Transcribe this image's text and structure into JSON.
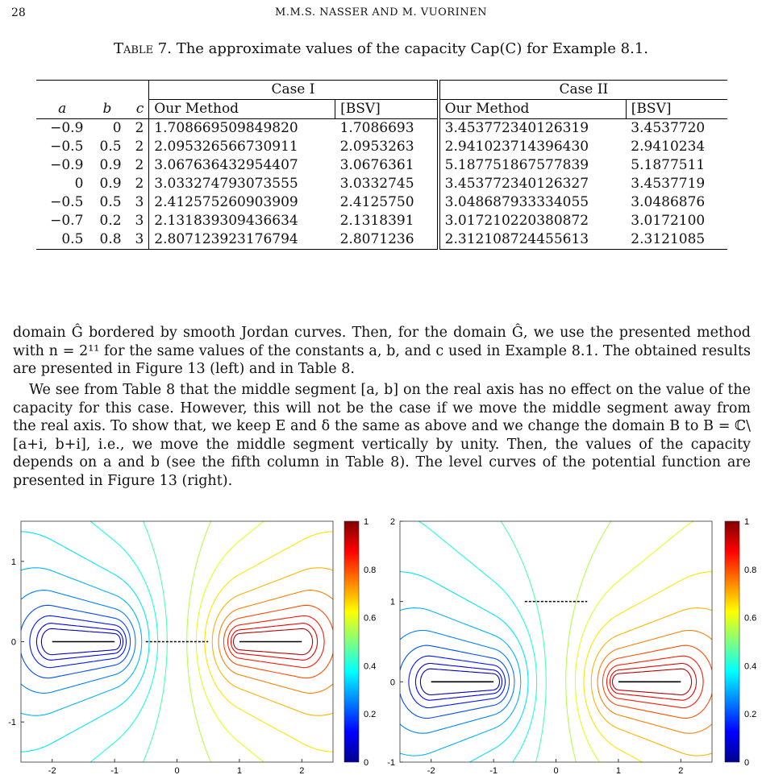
{
  "header": {
    "page_number": "28",
    "running_title": "M.M.S. NASSER AND M. VUORINEN"
  },
  "table": {
    "caption_prefix": "Table 7.",
    "caption_text": "The approximate values of the capacity Cap(C) for Example 8.1.",
    "case1": "Case I",
    "case2": "Case II",
    "columns": [
      "a",
      "b",
      "c",
      "Our Method",
      "[BSV]",
      "Our Method",
      "[BSV]"
    ],
    "rows": [
      [
        "−0.9",
        "0",
        "2",
        "1.708669509849820",
        "1.7086693",
        "3.453772340126319",
        "3.4537720"
      ],
      [
        "−0.5",
        "0.5",
        "2",
        "2.095326566730911",
        "2.0953263",
        "2.941023714396430",
        "2.9410234"
      ],
      [
        "−0.9",
        "0.9",
        "2",
        "3.067636432954407",
        "3.0676361",
        "5.187751867577839",
        "5.1877511"
      ],
      [
        "0",
        "0.9",
        "2",
        "3.033274793073555",
        "3.0332745",
        "3.453772340126327",
        "3.4537719"
      ],
      [
        "−0.5",
        "0.5",
        "3",
        "2.412575260903909",
        "2.4125750",
        "3.048687933334055",
        "3.0486876"
      ],
      [
        "−0.7",
        "0.2",
        "3",
        "2.131839309436634",
        "2.1318391",
        "3.017210220380872",
        "3.0172100"
      ],
      [
        "0.5",
        "0.8",
        "3",
        "2.807123923176794",
        "2.8071236",
        "2.312108724455613",
        "2.3121085"
      ]
    ]
  },
  "text": {
    "p1": "domain Ĝ bordered by smooth Jordan curves. Then, for the domain Ĝ, we use the presented method with n = 2¹¹ for the same values of the constants a, b, and c used in Example 8.1. The obtained results are presented in Figure 13 (left) and in Table 8.",
    "p2": "We see from Table 8 that the middle segment [a, b] on the real axis has no effect on the value of the capacity for this case. However, this will not be the case if we move the middle segment away from the real axis. To show that, we keep E and δ the same as above and we change the domain B to B = ℂ\\[a+i, b+i], i.e., we move the middle segment vertically by unity. Then, the values of the capacity depends on a and b (see the fifth column in Table 8). The level curves of the potential function are presented in Figure 13 (right)."
  },
  "figures": {
    "left": {
      "xticks": [
        "-2",
        "-1",
        "0",
        "1",
        "2"
      ],
      "yticks": [
        "1",
        "0",
        "-1"
      ],
      "colorbar_ticks": [
        "1",
        "0.8",
        "0.6",
        "0.4",
        "0.2",
        "0"
      ]
    },
    "right": {
      "xticks": [
        "-2",
        "-1",
        "0",
        "1",
        "2"
      ],
      "yticks": [
        "2",
        "1",
        "0",
        "-1"
      ],
      "colorbar_ticks": [
        "1",
        "0.8",
        "0.6",
        "0.4",
        "0.2",
        "0"
      ]
    }
  }
}
